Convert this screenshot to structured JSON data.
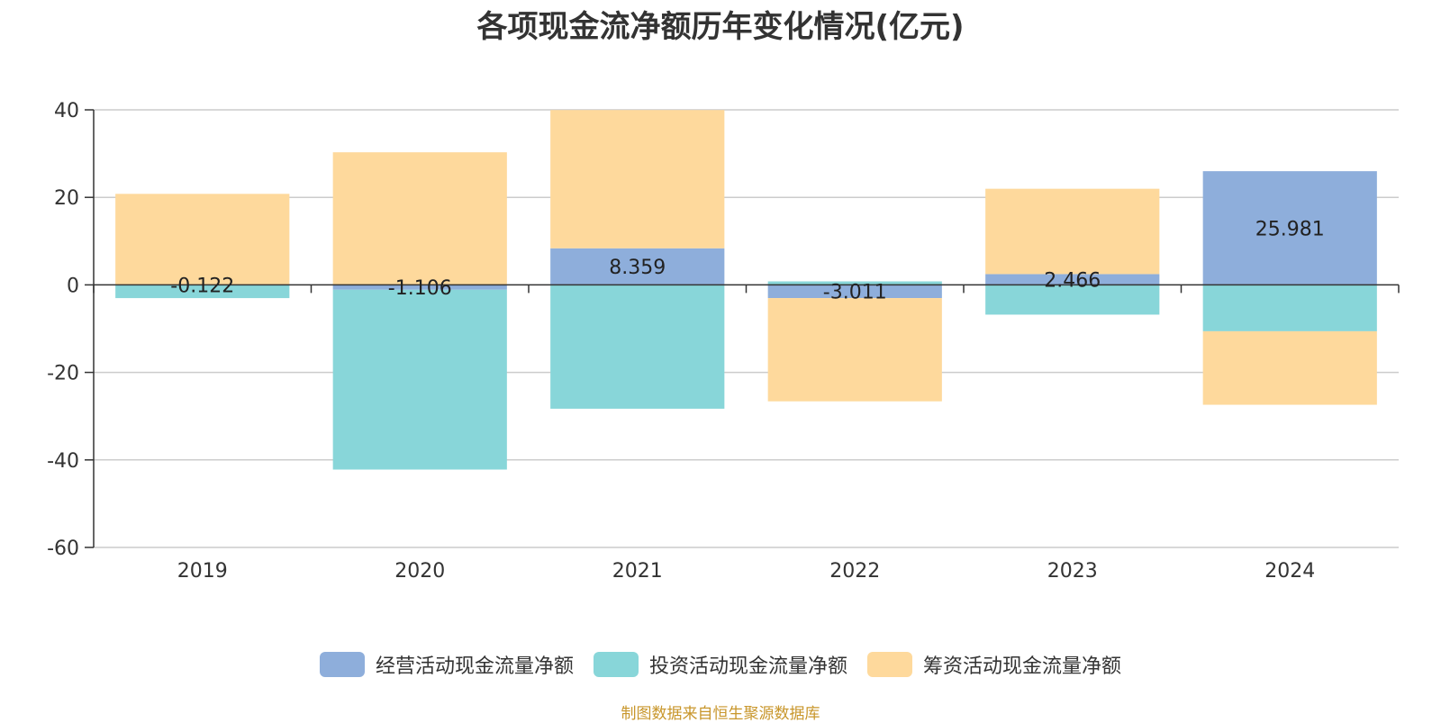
{
  "chart_data": {
    "type": "bar",
    "stacked": true,
    "title": "各项现金流净额历年变化情况(亿元)",
    "categories": [
      "2019",
      "2020",
      "2021",
      "2022",
      "2023",
      "2024"
    ],
    "series": [
      {
        "name": "经营活动现金流量净额",
        "color": "#8eaedb",
        "values": [
          -0.122,
          -1.106,
          8.359,
          -3.011,
          2.466,
          25.981
        ],
        "labels": [
          "-0.122",
          "-1.106",
          "8.359",
          "-3.011",
          "2.466",
          "25.981"
        ]
      },
      {
        "name": "投资活动现金流量净额",
        "color": "#88d6d9",
        "values": [
          -2.9,
          -41.1,
          -28.3,
          0.8,
          -6.8,
          -10.6
        ]
      },
      {
        "name": "筹资活动现金流量净额",
        "color": "#fed99c",
        "values": [
          20.8,
          30.3,
          31.6,
          -23.6,
          19.5,
          -16.8
        ]
      }
    ],
    "yticks": [
      "40",
      "20",
      "0",
      "-20",
      "-40",
      "-60"
    ],
    "ylim": [
      -60,
      40
    ],
    "grid": true,
    "legend_position": "bottom"
  },
  "source_note": "制图数据来自恒生聚源数据库"
}
